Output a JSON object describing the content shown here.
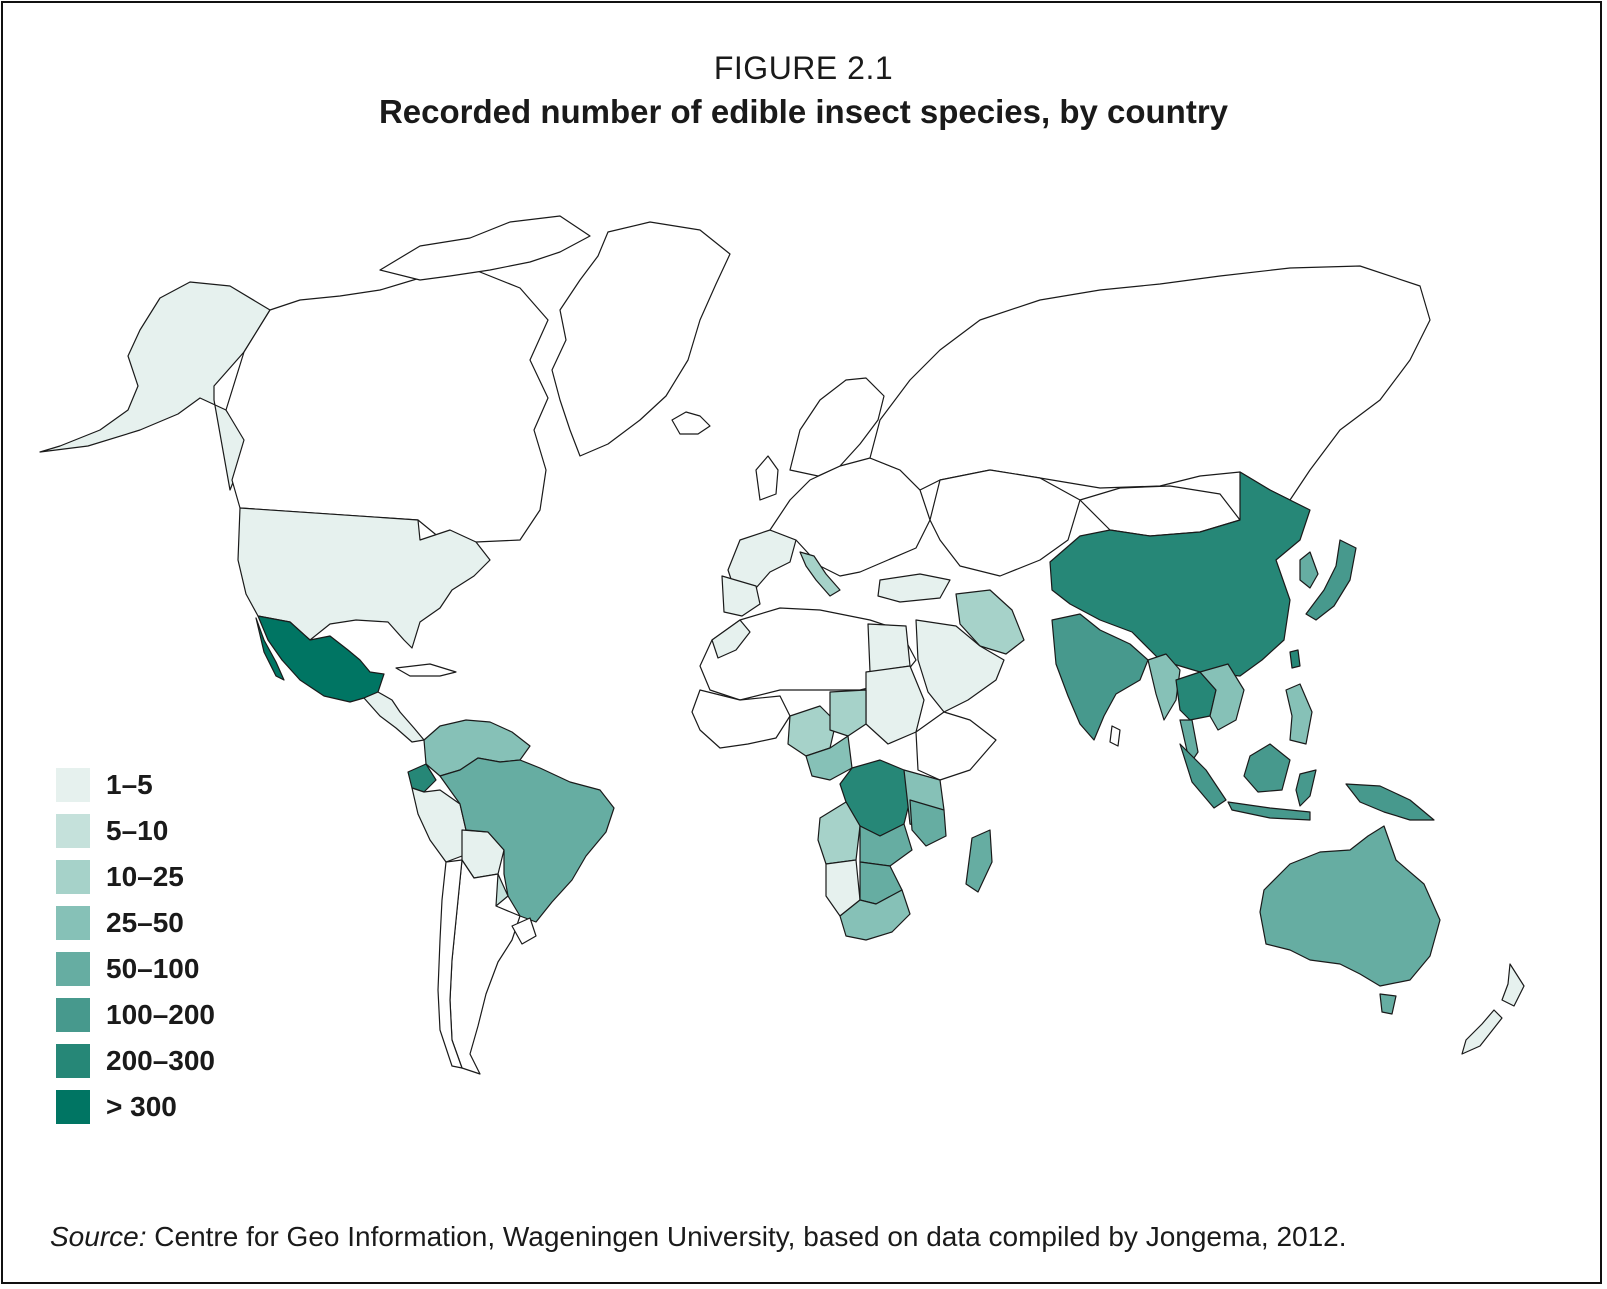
{
  "figure": {
    "label": "FIGURE 2.1",
    "title": "Recorded number of edible insect species, by country"
  },
  "legend": [
    {
      "label": "1–5",
      "color": "#e6f1ee"
    },
    {
      "label": "5–10",
      "color": "#c5e1db"
    },
    {
      "label": "10–25",
      "color": "#a6d2c9"
    },
    {
      "label": "25–50",
      "color": "#86c1b7"
    },
    {
      "label": "50–100",
      "color": "#66ada2"
    },
    {
      "label": "100–200",
      "color": "#47998d"
    },
    {
      "label": "200–300",
      "color": "#268777"
    },
    {
      "label": "> 300",
      "color": "#007563"
    }
  ],
  "source": {
    "prefix": "Source:",
    "text": "Centre for Geo Information, Wageningen University, based on data compiled by Jongema, 2012."
  },
  "colors": {
    "outline": "#1a1a1a",
    "no_data": "#ffffff"
  }
}
